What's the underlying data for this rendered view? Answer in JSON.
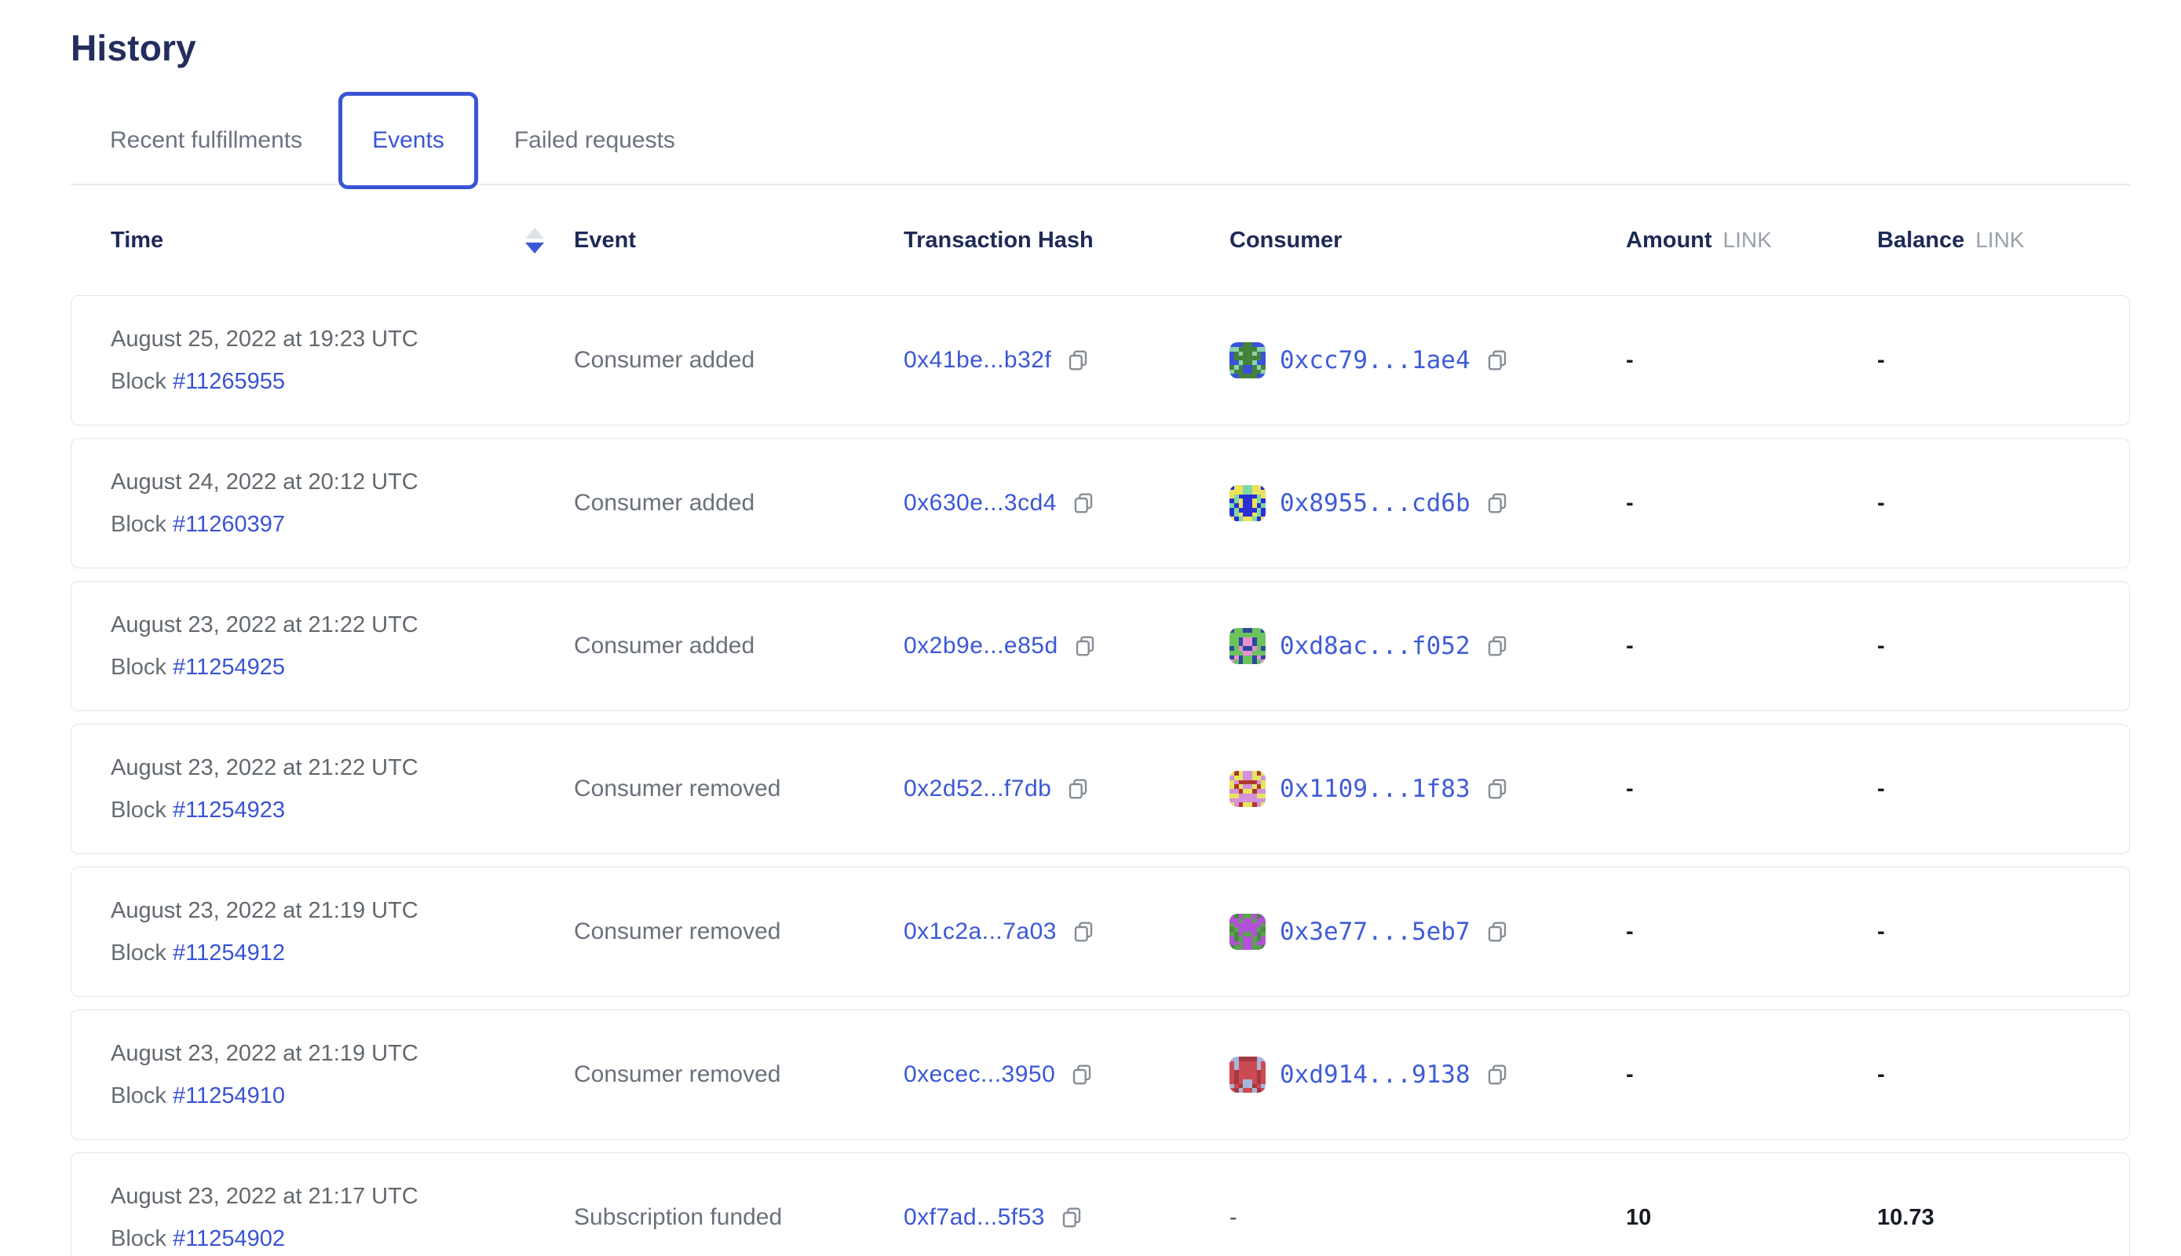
{
  "page": {
    "title": "History"
  },
  "tabs": {
    "recent": {
      "label": "Recent fulfillments",
      "active": false
    },
    "events": {
      "label": "Events",
      "active": true
    },
    "failed": {
      "label": "Failed requests",
      "active": false
    }
  },
  "colors": {
    "accent_blue": "#3a55d4",
    "link_blue": "#3a57d6",
    "heading_navy": "#232d5e",
    "body_gray": "#6a707b",
    "card_border": "#e3e5e9"
  },
  "table": {
    "columns": {
      "time": "Time",
      "event": "Event",
      "hash": "Transaction Hash",
      "consumer": "Consumer",
      "amount": "Amount",
      "balance": "Balance",
      "unit": "LINK"
    },
    "sort": {
      "column": "time",
      "direction": "desc"
    },
    "block_label": "Block",
    "rows": [
      {
        "date": "August 25, 2022 at 19:23 UTC",
        "block": "#11265955",
        "event": "Consumer added",
        "tx": "0x41be...b32f",
        "consumer": "0xcc79...1ae4",
        "avatar": {
          "bg": "#44823a",
          "fg": "#3a52d9",
          "spot": "#8ed3ae"
        },
        "amount": "-",
        "balance": "-"
      },
      {
        "date": "August 24, 2022 at 20:12 UTC",
        "block": "#11260397",
        "event": "Consumer added",
        "tx": "0x630e...3cd4",
        "consumer": "0x8955...cd6b",
        "avatar": {
          "bg": "#2b2fd6",
          "fg": "#ece25b",
          "spot": "#7fd9a1"
        },
        "amount": "-",
        "balance": "-"
      },
      {
        "date": "August 23, 2022 at 21:22 UTC",
        "block": "#11254925",
        "event": "Consumer added",
        "tx": "0x2b9e...e85d",
        "consumer": "0xd8ac...f052",
        "avatar": {
          "bg": "#6cc35c",
          "fg": "#e98fd4",
          "spot": "#2b4a9f"
        },
        "amount": "-",
        "balance": "-"
      },
      {
        "date": "August 23, 2022 at 21:22 UTC",
        "block": "#11254923",
        "event": "Consumer removed",
        "tx": "0x2d52...f7db",
        "consumer": "0x1109...1f83",
        "avatar": {
          "bg": "#d592dc",
          "fg": "#e6e55e",
          "spot": "#b0372f"
        },
        "amount": "-",
        "balance": "-"
      },
      {
        "date": "August 23, 2022 at 21:19 UTC",
        "block": "#11254912",
        "event": "Consumer removed",
        "tx": "0x1c2a...7a03",
        "consumer": "0x3e77...5eb7",
        "avatar": {
          "bg": "#5da053",
          "fg": "#b44fd9",
          "spot": "#4a8842"
        },
        "amount": "-",
        "balance": "-"
      },
      {
        "date": "August 23, 2022 at 21:19 UTC",
        "block": "#11254910",
        "event": "Consumer removed",
        "tx": "0xecec...3950",
        "consumer": "0xd914...9138",
        "avatar": {
          "bg": "#cc4a52",
          "fg": "#a7b6dd",
          "spot": "#a23a40"
        },
        "amount": "-",
        "balance": "-"
      },
      {
        "date": "August 23, 2022 at 21:17 UTC",
        "block": "#11254902",
        "event": "Subscription funded",
        "tx": "0xf7ad...5f53",
        "consumer": "-",
        "avatar": null,
        "amount": "10",
        "balance": "10.73"
      }
    ]
  }
}
